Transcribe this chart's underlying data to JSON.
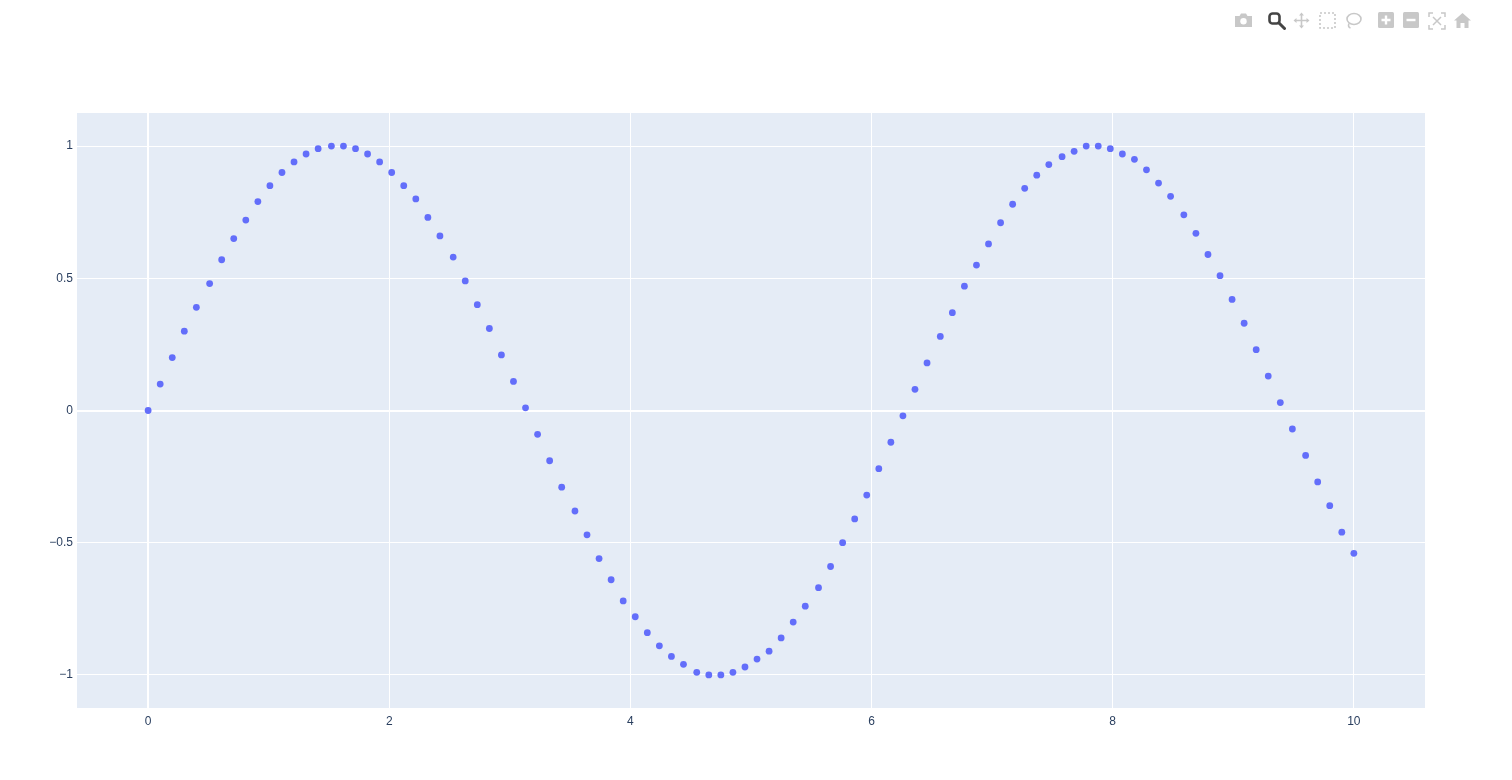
{
  "chart_data": {
    "type": "scatter",
    "marker": "circle",
    "color": "#636efa",
    "grid": true,
    "x": [
      0,
      0.1,
      0.2,
      0.3,
      0.4,
      0.51,
      0.61,
      0.71,
      0.81,
      0.91,
      1.01,
      1.11,
      1.21,
      1.31,
      1.41,
      1.52,
      1.62,
      1.72,
      1.82,
      1.92,
      2.02,
      2.12,
      2.22,
      2.32,
      2.42,
      2.53,
      2.63,
      2.73,
      2.83,
      2.93,
      3.03,
      3.13,
      3.23,
      3.33,
      3.43,
      3.54,
      3.64,
      3.74,
      3.84,
      3.94,
      4.04,
      4.14,
      4.24,
      4.34,
      4.44,
      4.55,
      4.65,
      4.75,
      4.85,
      4.95,
      5.05,
      5.15,
      5.25,
      5.35,
      5.45,
      5.56,
      5.66,
      5.76,
      5.86,
      5.96,
      6.06,
      6.16,
      6.26,
      6.36,
      6.46,
      6.57,
      6.67,
      6.77,
      6.87,
      6.97,
      7.07,
      7.17,
      7.27,
      7.37,
      7.47,
      7.58,
      7.68,
      7.78,
      7.88,
      7.98,
      8.08,
      8.18,
      8.28,
      8.38,
      8.48,
      8.59,
      8.69,
      8.79,
      8.89,
      8.99,
      9.09,
      9.19,
      9.29,
      9.39,
      9.49,
      9.6,
      9.7,
      9.8,
      9.9,
      10
    ],
    "values": [
      0,
      0.1,
      0.2,
      0.3,
      0.39,
      0.48,
      0.57,
      0.65,
      0.72,
      0.79,
      0.85,
      0.9,
      0.94,
      0.97,
      0.99,
      1,
      1,
      0.99,
      0.97,
      0.94,
      0.9,
      0.85,
      0.8,
      0.73,
      0.66,
      0.58,
      0.49,
      0.4,
      0.31,
      0.21,
      0.11,
      0.01,
      -0.09,
      -0.19,
      -0.29,
      -0.38,
      -0.47,
      -0.56,
      -0.64,
      -0.72,
      -0.78,
      -0.84,
      -0.89,
      -0.93,
      -0.96,
      -0.99,
      -1,
      -1,
      -0.99,
      -0.97,
      -0.94,
      -0.91,
      -0.86,
      -0.8,
      -0.74,
      -0.67,
      -0.59,
      -0.5,
      -0.41,
      -0.32,
      -0.22,
      -0.12,
      -0.02,
      0.08,
      0.18,
      0.28,
      0.37,
      0.47,
      0.55,
      0.63,
      0.71,
      0.78,
      0.84,
      0.89,
      0.93,
      0.96,
      0.98,
      1,
      1,
      0.99,
      0.97,
      0.95,
      0.91,
      0.86,
      0.81,
      0.74,
      0.67,
      0.59,
      0.51,
      0.42,
      0.33,
      0.23,
      0.13,
      0.03,
      -0.07,
      -0.17,
      -0.27,
      -0.36,
      -0.46,
      -0.54
    ],
    "xlim": [
      -0.59,
      10.59
    ],
    "ylim": [
      -1.125,
      1.125
    ],
    "xticks": [
      0,
      2,
      4,
      6,
      8,
      10
    ],
    "yticks": [
      {
        "value": -1,
        "label": "−1"
      },
      {
        "value": -0.5,
        "label": "−0.5"
      },
      0,
      0.5,
      1
    ]
  }
}
